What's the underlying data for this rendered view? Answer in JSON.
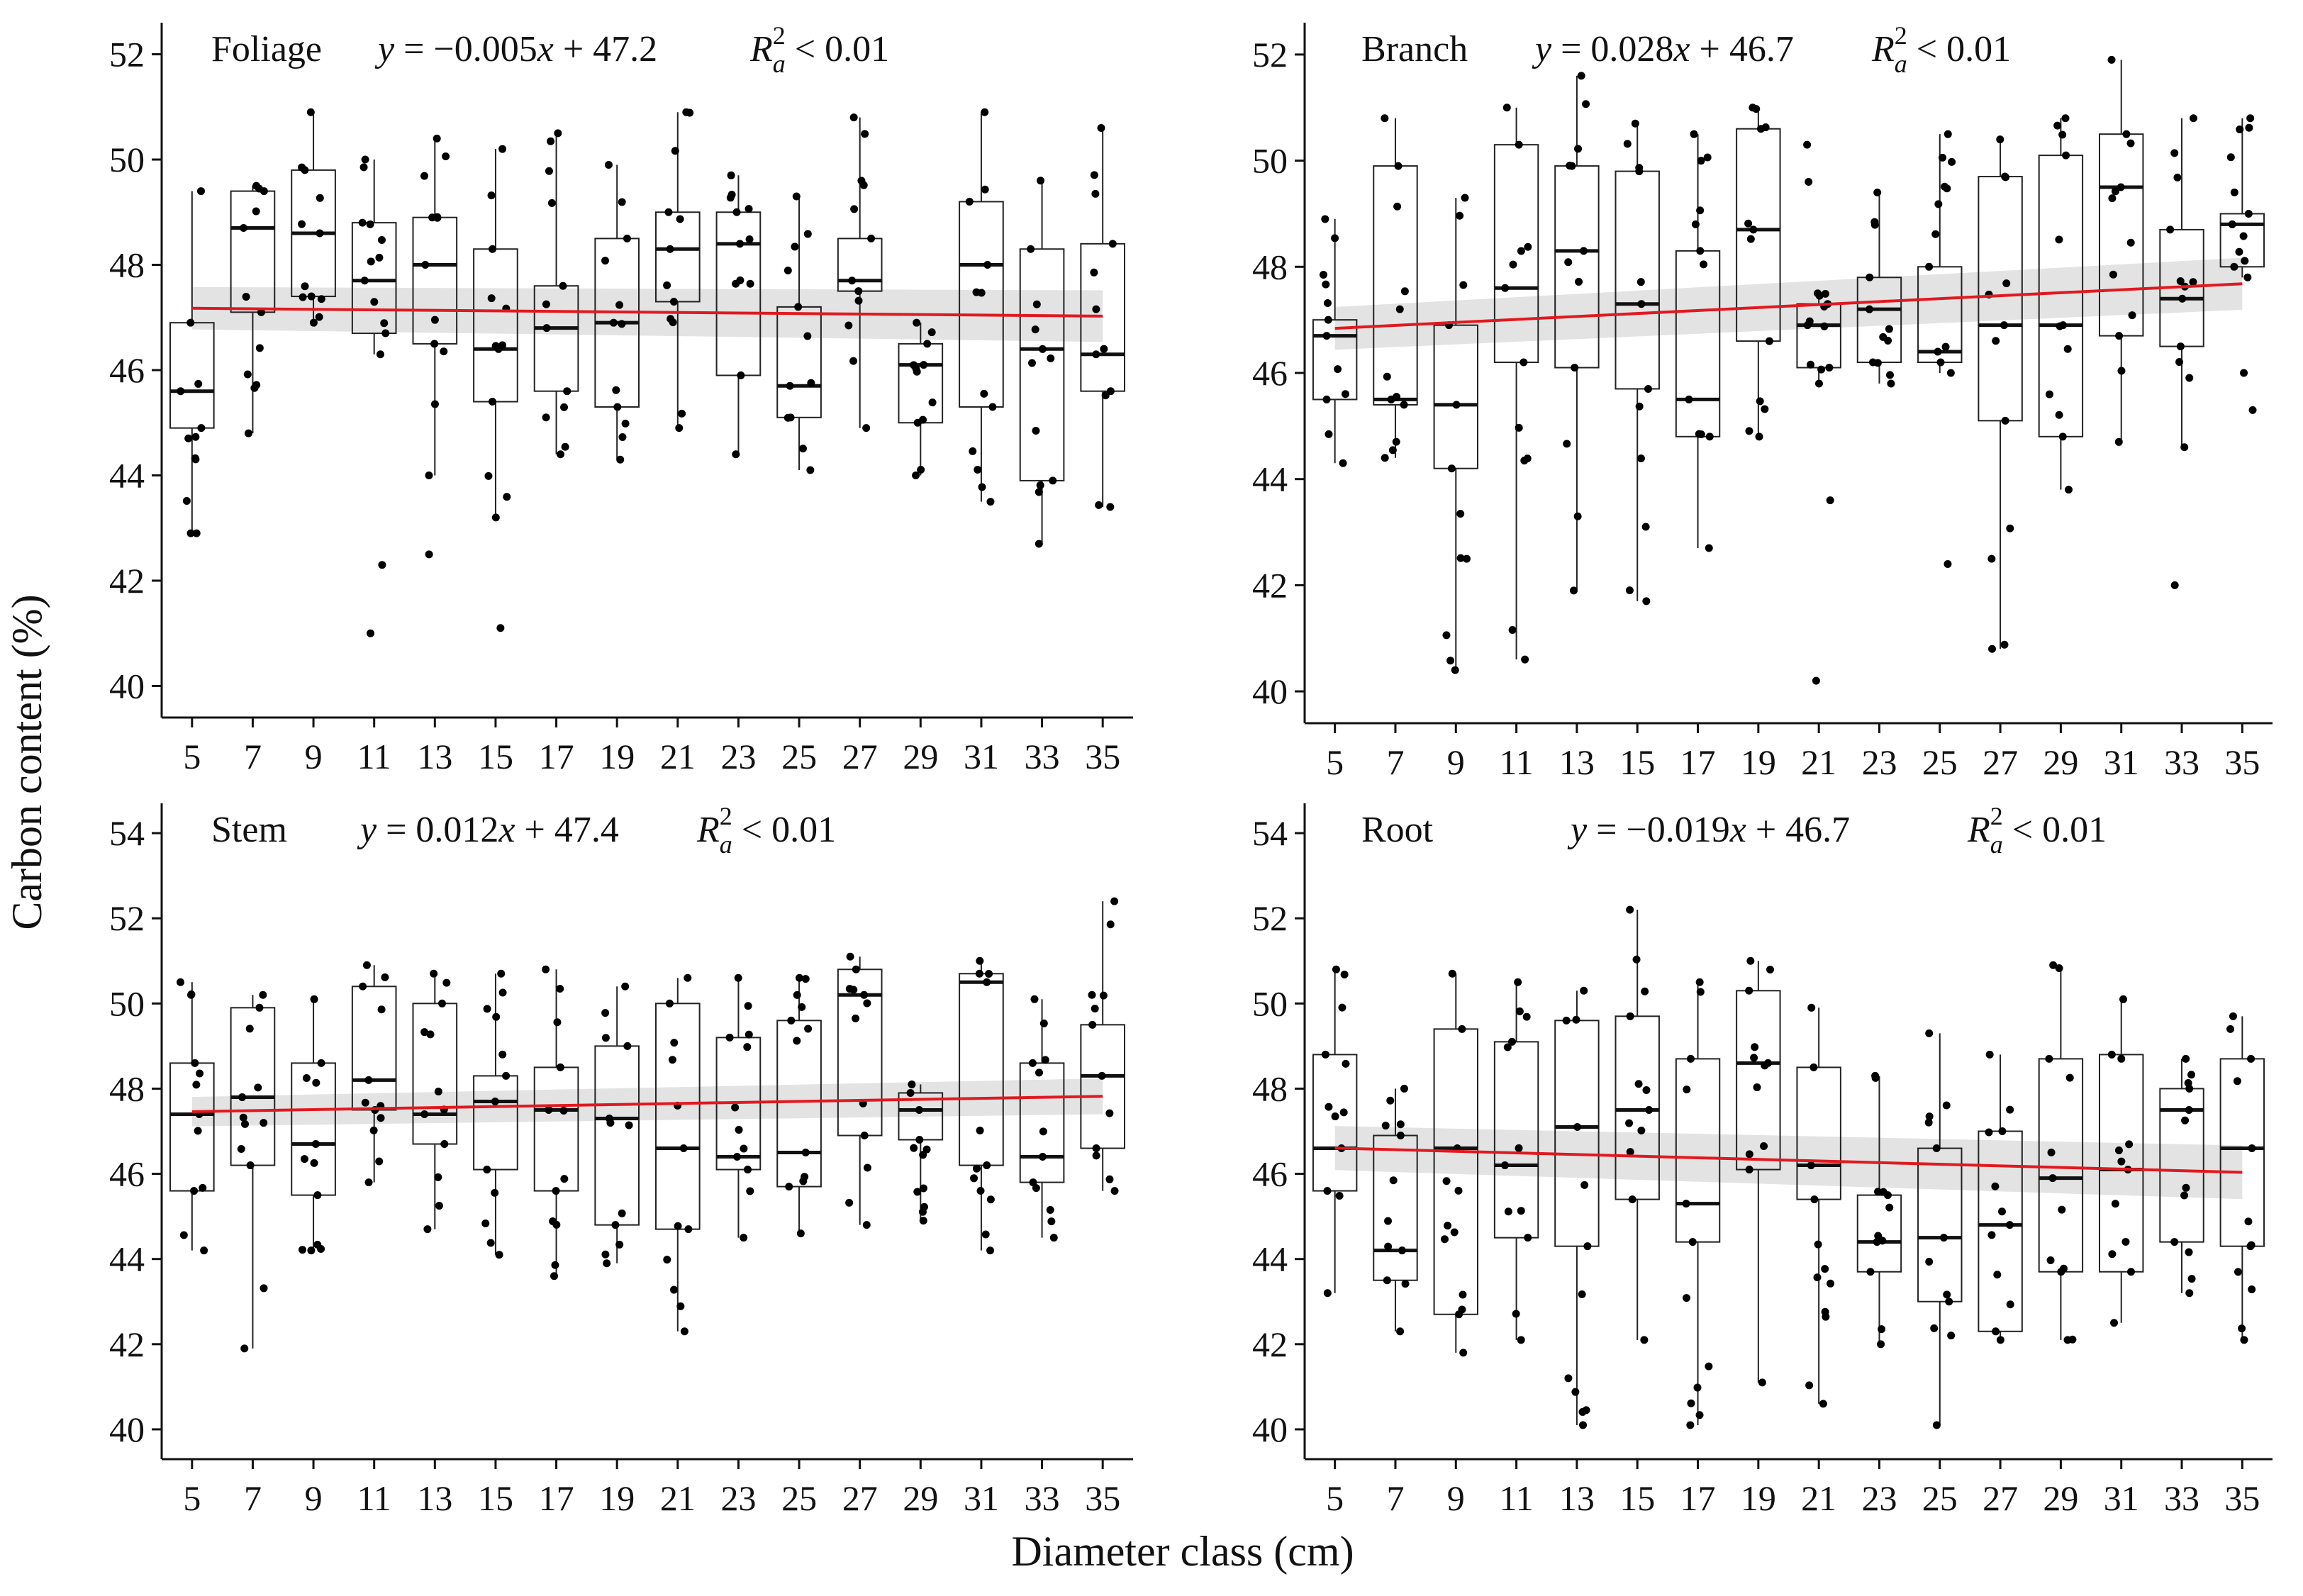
{
  "figure": {
    "shared_ylabel": "Carbon content (%)",
    "shared_xlabel": "Diameter class (cm)",
    "colors": {
      "box_edge": "#222222",
      "point": "#000000",
      "trend": "#e0191f",
      "ci_band": "#d9d9d9"
    }
  },
  "chart_data": [
    {
      "type": "box",
      "panel": "Foliage",
      "equation": {
        "y": "y",
        "rhs": " = −0.005",
        "x": "x",
        "tail": " + 47.2"
      },
      "r2": {
        "R": "R",
        "sub": "a",
        "sup": "2",
        "rest": " < 0.01"
      },
      "xlabel": "Diameter class (cm)",
      "ylabel": "Carbon content (%)",
      "categories": [
        "5",
        "7",
        "9",
        "11",
        "13",
        "15",
        "17",
        "19",
        "21",
        "23",
        "25",
        "27",
        "29",
        "31",
        "33",
        "35"
      ],
      "ylim": [
        39.4,
        52.6
      ],
      "yticks": [
        "40",
        "42",
        "44",
        "46",
        "48",
        "50",
        "52"
      ],
      "trend": {
        "slope": -0.005,
        "intercept": 47.2,
        "ci": 0.35
      },
      "boxes": [
        {
          "q1": 44.9,
          "median": 45.6,
          "q3": 46.9,
          "low": 42.9,
          "high": 49.4
        },
        {
          "q1": 47.1,
          "median": 48.7,
          "q3": 49.4,
          "low": 44.8,
          "high": 49.5
        },
        {
          "q1": 47.4,
          "median": 48.6,
          "q3": 49.8,
          "low": 46.9,
          "high": 50.9
        },
        {
          "q1": 46.7,
          "median": 47.7,
          "q3": 48.8,
          "low": 46.3,
          "high": 50.0
        },
        {
          "q1": 46.5,
          "median": 48.0,
          "q3": 48.9,
          "low": 44.0,
          "high": 50.4
        },
        {
          "q1": 45.4,
          "median": 46.4,
          "q3": 48.3,
          "low": 43.2,
          "high": 50.2
        },
        {
          "q1": 45.6,
          "median": 46.8,
          "q3": 47.6,
          "low": 44.4,
          "high": 50.5
        },
        {
          "q1": 45.3,
          "median": 46.9,
          "q3": 48.5,
          "low": 44.3,
          "high": 49.9
        },
        {
          "q1": 47.3,
          "median": 48.3,
          "q3": 49.0,
          "low": 44.9,
          "high": 50.9
        },
        {
          "q1": 45.9,
          "median": 48.4,
          "q3": 49.0,
          "low": 44.4,
          "high": 49.7
        },
        {
          "q1": 45.1,
          "median": 45.7,
          "q3": 47.2,
          "low": 44.1,
          "high": 49.3
        },
        {
          "q1": 47.5,
          "median": 47.7,
          "q3": 48.5,
          "low": 44.9,
          "high": 50.8
        },
        {
          "q1": 45.0,
          "median": 46.1,
          "q3": 46.5,
          "low": 44.0,
          "high": 46.9
        },
        {
          "q1": 45.3,
          "median": 48.0,
          "q3": 49.2,
          "low": 43.5,
          "high": 50.9
        },
        {
          "q1": 43.9,
          "median": 46.4,
          "q3": 48.3,
          "low": 42.7,
          "high": 49.6
        },
        {
          "q1": 45.6,
          "median": 46.3,
          "q3": 48.4,
          "low": 43.4,
          "high": 50.6
        }
      ],
      "outliers": [
        [],
        [],
        [],
        [
          42.3,
          41.0
        ],
        [
          42.5
        ],
        [
          41.1
        ],
        [],
        [],
        [],
        [],
        [],
        [],
        [],
        [],
        [],
        []
      ]
    },
    {
      "type": "box",
      "panel": "Branch",
      "equation": {
        "y": "y",
        "rhs": " = 0.028",
        "x": "x",
        "tail": " + 46.7"
      },
      "r2": {
        "R": "R",
        "sub": "a",
        "sup": "2",
        "rest": " < 0.01"
      },
      "xlabel": "Diameter class (cm)",
      "ylabel": "Carbon content (%)",
      "categories": [
        "5",
        "7",
        "9",
        "11",
        "13",
        "15",
        "17",
        "19",
        "21",
        "23",
        "25",
        "27",
        "29",
        "31",
        "33",
        "35"
      ],
      "ylim": [
        39.4,
        52.6
      ],
      "yticks": [
        "40",
        "42",
        "44",
        "46",
        "48",
        "50",
        "52"
      ],
      "trend": {
        "slope": 0.028,
        "intercept": 46.7,
        "ci": 0.35
      },
      "boxes": [
        {
          "q1": 45.5,
          "median": 46.7,
          "q3": 47.0,
          "low": 44.3,
          "high": 48.9
        },
        {
          "q1": 45.4,
          "median": 45.5,
          "q3": 49.9,
          "low": 44.4,
          "high": 50.8
        },
        {
          "q1": 44.2,
          "median": 45.4,
          "q3": 46.9,
          "low": 40.4,
          "high": 49.3
        },
        {
          "q1": 46.2,
          "median": 47.6,
          "q3": 50.3,
          "low": 40.6,
          "high": 51.0
        },
        {
          "q1": 46.1,
          "median": 48.3,
          "q3": 49.9,
          "low": 41.9,
          "high": 51.6
        },
        {
          "q1": 45.7,
          "median": 47.3,
          "q3": 49.8,
          "low": 41.7,
          "high": 50.7
        },
        {
          "q1": 44.8,
          "median": 45.5,
          "q3": 48.3,
          "low": 42.7,
          "high": 50.5
        },
        {
          "q1": 46.6,
          "median": 48.7,
          "q3": 50.6,
          "low": 44.8,
          "high": 51.0
        },
        {
          "q1": 46.1,
          "median": 46.9,
          "q3": 47.3,
          "low": 45.8,
          "high": 47.5
        },
        {
          "q1": 46.2,
          "median": 47.2,
          "q3": 47.8,
          "low": 45.8,
          "high": 49.4
        },
        {
          "q1": 46.2,
          "median": 46.4,
          "q3": 48.0,
          "low": 46.0,
          "high": 50.5
        },
        {
          "q1": 45.1,
          "median": 46.9,
          "q3": 49.7,
          "low": 40.8,
          "high": 50.4
        },
        {
          "q1": 44.8,
          "median": 46.9,
          "q3": 50.1,
          "low": 43.8,
          "high": 50.8
        },
        {
          "q1": 46.7,
          "median": 49.5,
          "q3": 50.5,
          "low": 44.7,
          "high": 51.9
        },
        {
          "q1": 46.5,
          "median": 47.4,
          "q3": 48.7,
          "low": 44.6,
          "high": 50.8
        },
        {
          "q1": 48.0,
          "median": 48.8,
          "q3": 49.0,
          "low": 47.8,
          "high": 50.8
        }
      ],
      "outliers": [
        [],
        [],
        [],
        [],
        [],
        [],
        [],
        [],
        [
          50.3,
          49.6,
          43.6,
          40.2
        ],
        [],
        [
          42.4
        ],
        [],
        [],
        [],
        [
          42.0
        ],
        [
          46.0,
          45.3
        ]
      ]
    },
    {
      "type": "box",
      "panel": "Stem",
      "equation": {
        "y": "y",
        "rhs": " = 0.012",
        "x": "x",
        "tail": " + 47.4"
      },
      "r2": {
        "R": "R",
        "sub": "a",
        "sup": "2",
        "rest": " < 0.01"
      },
      "xlabel": "Diameter class (cm)",
      "ylabel": "Carbon content (%)",
      "categories": [
        "5",
        "7",
        "9",
        "11",
        "13",
        "15",
        "17",
        "19",
        "21",
        "23",
        "25",
        "27",
        "29",
        "31",
        "33",
        "35"
      ],
      "ylim": [
        39.3,
        54.7
      ],
      "yticks": [
        "40",
        "42",
        "44",
        "46",
        "48",
        "50",
        "52",
        "54"
      ],
      "trend": {
        "slope": 0.012,
        "intercept": 47.4,
        "ci": 0.3
      },
      "boxes": [
        {
          "q1": 45.6,
          "median": 47.4,
          "q3": 48.6,
          "low": 44.2,
          "high": 50.5
        },
        {
          "q1": 46.2,
          "median": 47.8,
          "q3": 49.9,
          "low": 41.9,
          "high": 50.2
        },
        {
          "q1": 45.5,
          "median": 46.7,
          "q3": 48.6,
          "low": 44.2,
          "high": 50.1
        },
        {
          "q1": 47.5,
          "median": 48.2,
          "q3": 50.4,
          "low": 45.8,
          "high": 50.9
        },
        {
          "q1": 46.7,
          "median": 47.4,
          "q3": 50.0,
          "low": 44.7,
          "high": 50.7
        },
        {
          "q1": 46.1,
          "median": 47.7,
          "q3": 48.3,
          "low": 44.1,
          "high": 50.7
        },
        {
          "q1": 45.6,
          "median": 47.5,
          "q3": 48.5,
          "low": 43.6,
          "high": 50.8
        },
        {
          "q1": 44.8,
          "median": 47.3,
          "q3": 49.0,
          "low": 43.9,
          "high": 50.4
        },
        {
          "q1": 44.7,
          "median": 46.6,
          "q3": 50.0,
          "low": 42.3,
          "high": 50.6
        },
        {
          "q1": 46.1,
          "median": 46.4,
          "q3": 49.2,
          "low": 44.5,
          "high": 50.6
        },
        {
          "q1": 45.7,
          "median": 46.5,
          "q3": 49.6,
          "low": 44.6,
          "high": 50.6
        },
        {
          "q1": 46.9,
          "median": 50.2,
          "q3": 50.8,
          "low": 44.8,
          "high": 51.1
        },
        {
          "q1": 46.8,
          "median": 47.5,
          "q3": 47.9,
          "low": 44.9,
          "high": 48.1
        },
        {
          "q1": 46.2,
          "median": 50.5,
          "q3": 50.7,
          "low": 44.2,
          "high": 51.0
        },
        {
          "q1": 45.8,
          "median": 46.4,
          "q3": 48.6,
          "low": 44.5,
          "high": 50.1
        },
        {
          "q1": 46.6,
          "median": 48.3,
          "q3": 49.5,
          "low": 45.6,
          "high": 52.4
        }
      ],
      "outliers": [
        [],
        [],
        [],
        [],
        [],
        [],
        [],
        [],
        [],
        [],
        [],
        [],
        [],
        [],
        [],
        []
      ]
    },
    {
      "type": "box",
      "panel": "Root",
      "equation": {
        "y": "y",
        "rhs": " = −0.019",
        "x": "x",
        "tail": " + 46.7"
      },
      "r2": {
        "R": "R",
        "sub": "a",
        "sup": "2",
        "rest": " < 0.01"
      },
      "xlabel": "Diameter class (cm)",
      "ylabel": "Carbon content (%)",
      "categories": [
        "5",
        "7",
        "9",
        "11",
        "13",
        "15",
        "17",
        "19",
        "21",
        "23",
        "25",
        "27",
        "29",
        "31",
        "33",
        "35"
      ],
      "ylim": [
        39.3,
        54.7
      ],
      "yticks": [
        "40",
        "42",
        "44",
        "46",
        "48",
        "50",
        "52",
        "54"
      ],
      "trend": {
        "slope": -0.019,
        "intercept": 46.7,
        "ci": 0.45
      },
      "boxes": [
        {
          "q1": 45.6,
          "median": 46.6,
          "q3": 48.8,
          "low": 43.2,
          "high": 50.8
        },
        {
          "q1": 43.5,
          "median": 44.2,
          "q3": 46.9,
          "low": 42.3,
          "high": 48.0
        },
        {
          "q1": 42.7,
          "median": 46.6,
          "q3": 49.4,
          "low": 41.8,
          "high": 50.7
        },
        {
          "q1": 44.5,
          "median": 46.2,
          "q3": 49.1,
          "low": 42.1,
          "high": 50.5
        },
        {
          "q1": 44.3,
          "median": 47.1,
          "q3": 49.6,
          "low": 40.1,
          "high": 50.3
        },
        {
          "q1": 45.4,
          "median": 47.5,
          "q3": 49.7,
          "low": 42.1,
          "high": 52.2
        },
        {
          "q1": 44.4,
          "median": 45.3,
          "q3": 48.7,
          "low": 40.1,
          "high": 50.5
        },
        {
          "q1": 46.1,
          "median": 48.6,
          "q3": 50.3,
          "low": 41.1,
          "high": 51.0
        },
        {
          "q1": 45.4,
          "median": 46.2,
          "q3": 48.5,
          "low": 40.6,
          "high": 49.9
        },
        {
          "q1": 43.7,
          "median": 44.4,
          "q3": 45.5,
          "low": 42.0,
          "high": 48.3
        },
        {
          "q1": 43.0,
          "median": 44.5,
          "q3": 46.6,
          "low": 40.1,
          "high": 49.3
        },
        {
          "q1": 42.3,
          "median": 44.8,
          "q3": 47.0,
          "low": 42.1,
          "high": 48.8
        },
        {
          "q1": 43.7,
          "median": 45.9,
          "q3": 48.7,
          "low": 42.1,
          "high": 50.9
        },
        {
          "q1": 43.7,
          "median": 46.1,
          "q3": 48.8,
          "low": 42.5,
          "high": 50.1
        },
        {
          "q1": 44.4,
          "median": 47.5,
          "q3": 48.0,
          "low": 43.2,
          "high": 48.7
        },
        {
          "q1": 44.3,
          "median": 46.6,
          "q3": 48.7,
          "low": 42.1,
          "high": 49.7
        }
      ],
      "outliers": [
        [],
        [],
        [],
        [],
        [],
        [],
        [],
        [],
        [],
        [],
        [],
        [],
        [],
        [],
        [],
        []
      ]
    }
  ]
}
